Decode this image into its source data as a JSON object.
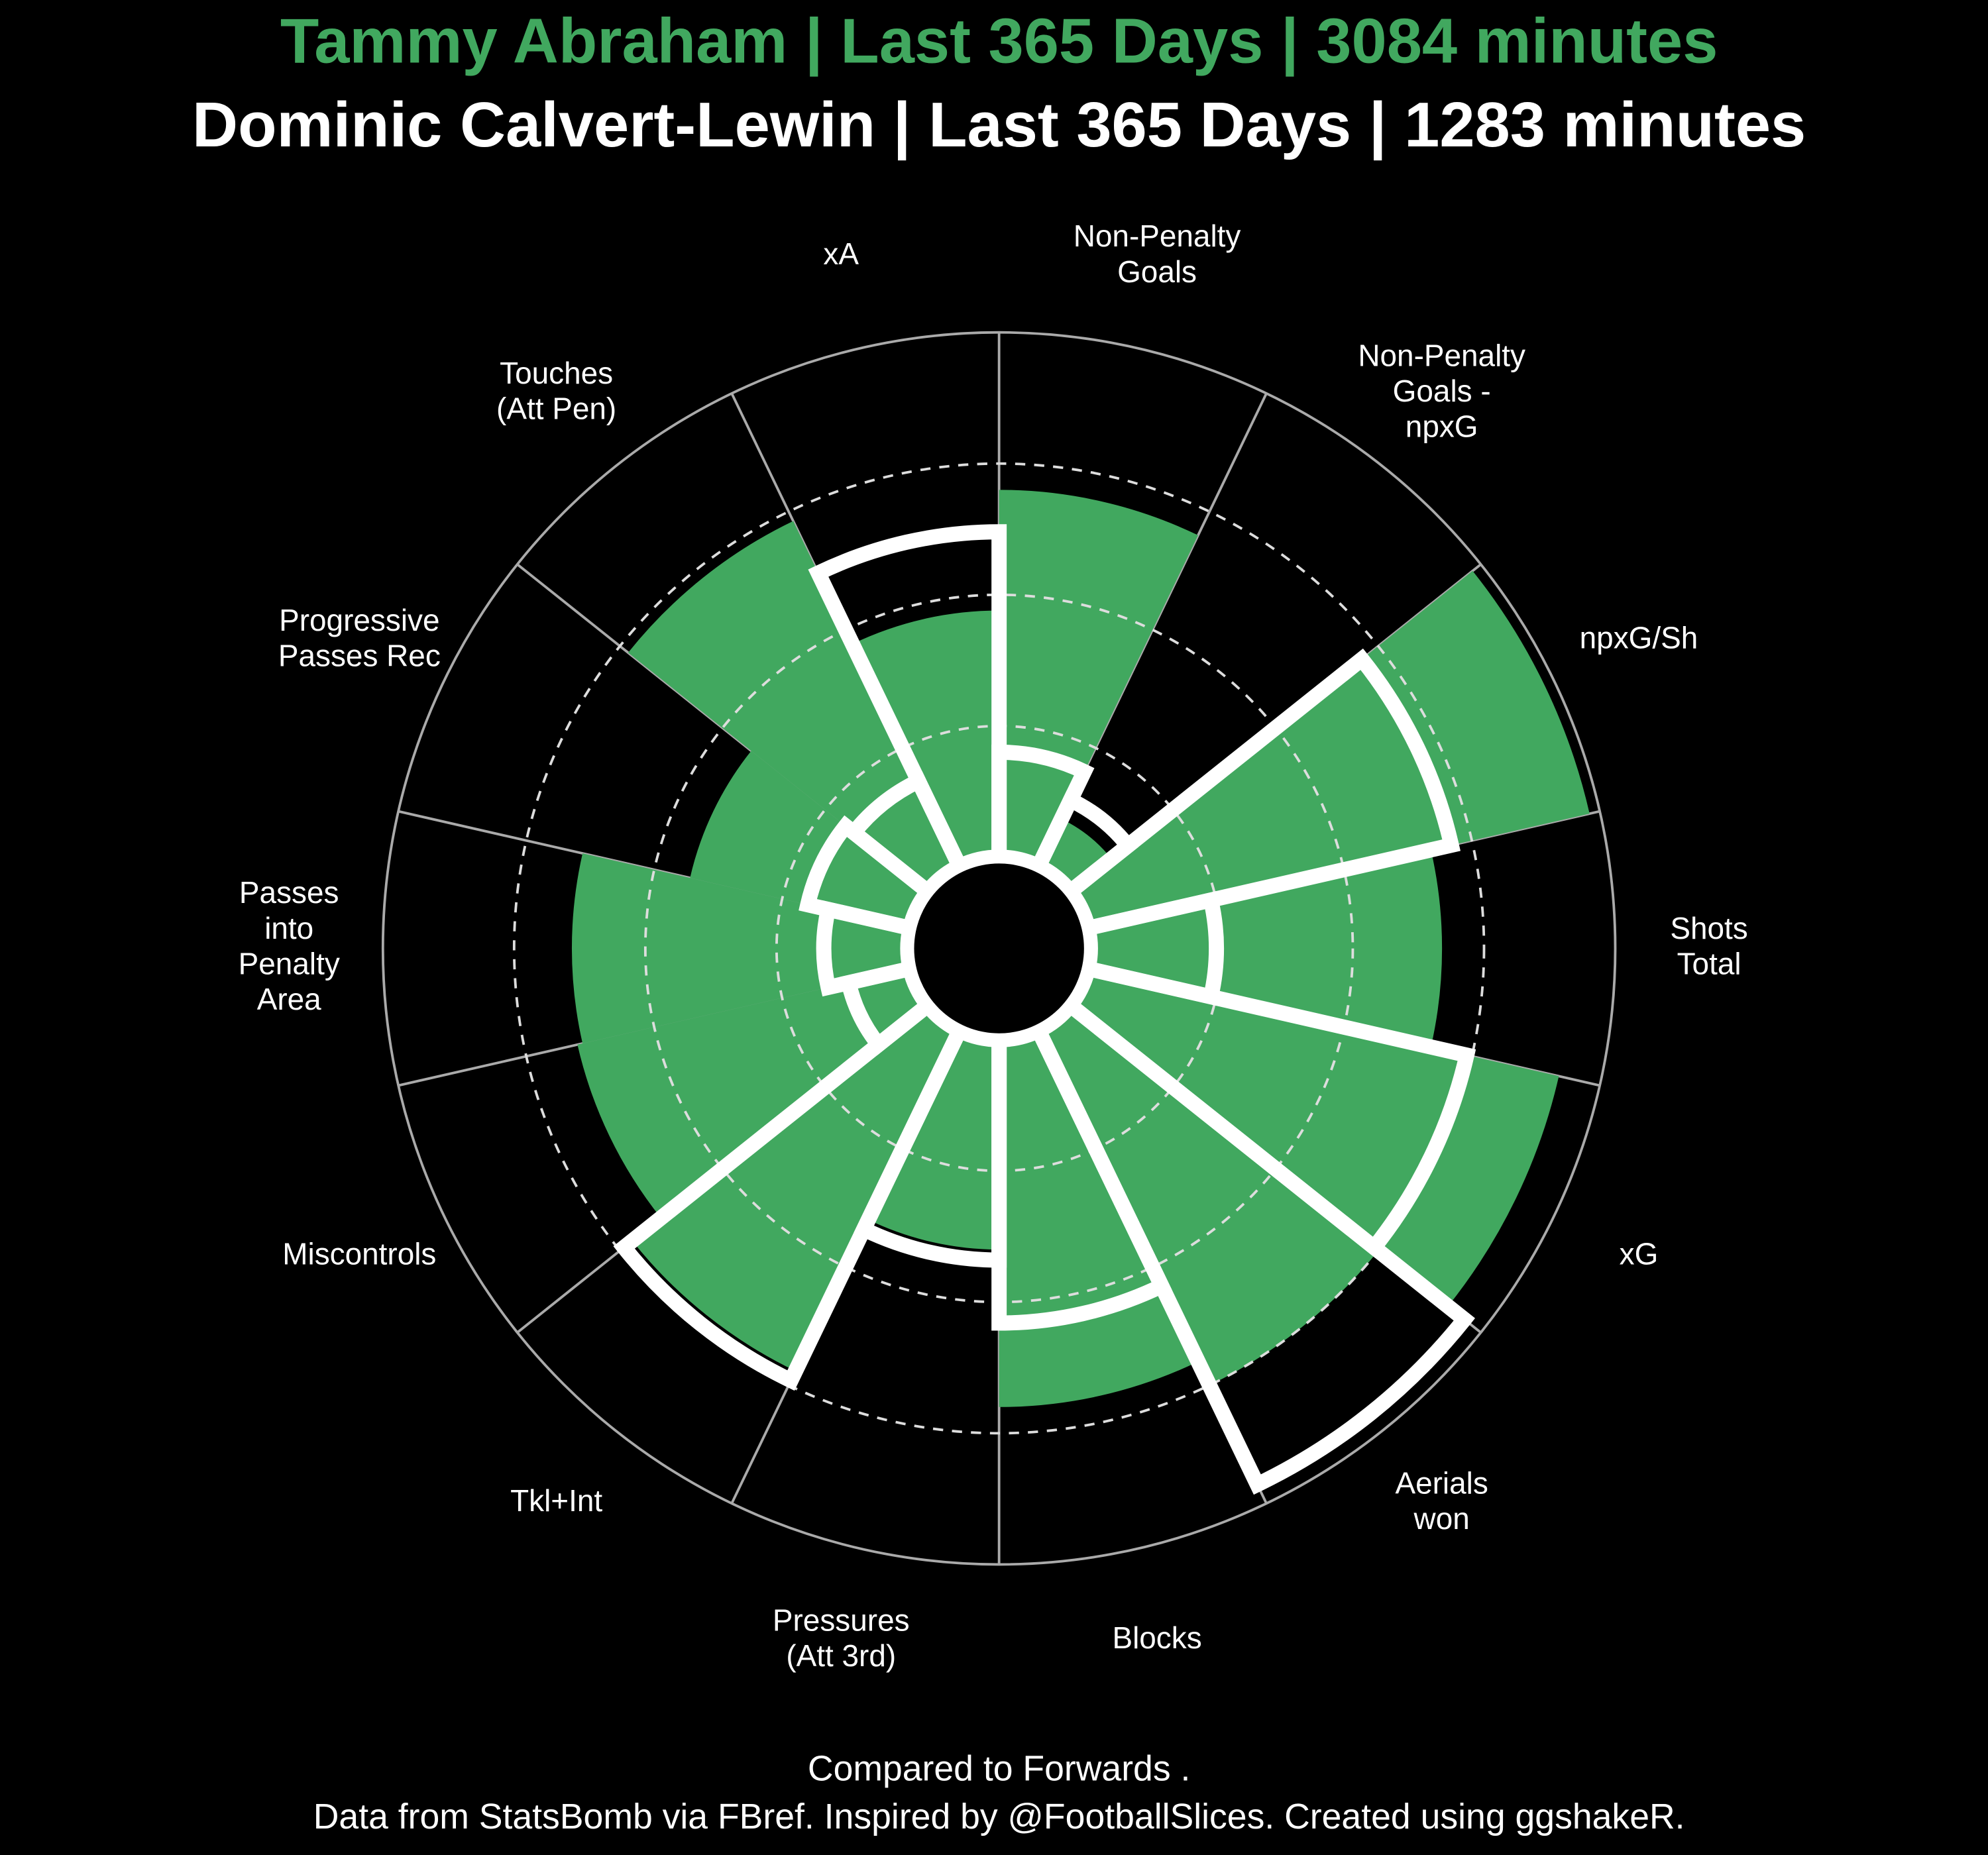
{
  "chart_data": {
    "type": "polar_bar",
    "subtitle": "Compared to Forwards .",
    "caption": "Data from StatsBomb via FBref. Inspired by @FootballSlices. Created using ggshakeR.",
    "categories": [
      "Non-Penalty\nGoals",
      "Non-Penalty\nGoals -\nnpxG",
      "npxG/Sh",
      "Shots\nTotal",
      "xG",
      "Aerials\nwon",
      "Blocks",
      "Pressures\n(Att 3rd)",
      "Tkl+Int",
      "Miscontrols",
      "Passes\ninto\nPenalty\nArea",
      "Progressive\nPasses Rec",
      "Touches\n(Att Pen)",
      "xA"
    ],
    "series": [
      {
        "name": "Tammy Abraham | Last 365 Days | 3084 minutes",
        "color": "#41a85f",
        "values": [
          70,
          10,
          98,
          67,
          92,
          75,
          70,
          40,
          72,
          65,
          64,
          43,
          73,
          47
        ]
      },
      {
        "name": "Dominic Calvert-Lewin | Last 365 Days | 1283 minutes",
        "color": "#ffffff",
        "values": [
          20,
          14,
          71,
          24,
          74,
          96,
          54,
          42,
          74,
          12,
          16,
          20,
          18,
          62
        ]
      }
    ],
    "ylim": [
      0,
      100
    ],
    "yticks": [
      25,
      50,
      75
    ],
    "grid": true
  }
}
